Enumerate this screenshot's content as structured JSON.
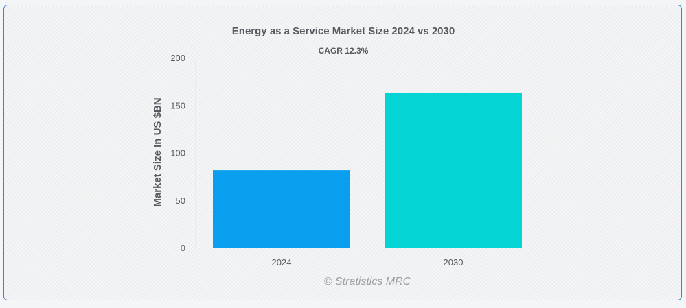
{
  "chart_data": {
    "type": "bar",
    "title": "Energy as a Service Market Size 2024 vs 2030",
    "subtitle": "CAGR 12.3%",
    "categories": [
      "2024",
      "2030"
    ],
    "values": [
      81.5,
      163.2
    ],
    "colors": [
      "#0a9fee",
      "#04d4d4"
    ],
    "ylabel": "Market Size In US $BN",
    "xlabel": "",
    "ylim": [
      0,
      200
    ],
    "yticks": [
      0,
      50,
      100,
      150,
      200
    ],
    "grid": false,
    "legend": "none"
  },
  "watermark": "© Stratistics MRC"
}
